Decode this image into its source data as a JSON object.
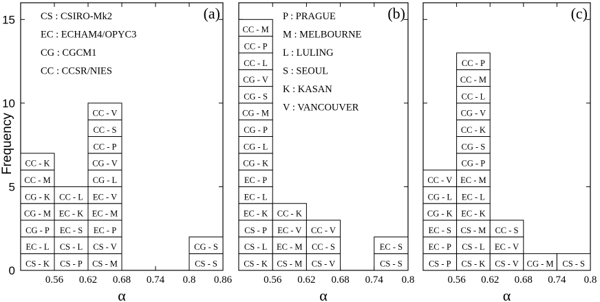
{
  "figure": {
    "ylabel": "Frequency",
    "y_ticks": [
      "0",
      "5",
      "10",
      "15"
    ]
  },
  "chart_data": [
    {
      "type": "bar",
      "panel_label": "(a)",
      "xlabel": "α",
      "x_ticks": [
        "0.56",
        "0.62",
        "0.68",
        "0.74",
        "0.8",
        "0.86"
      ],
      "xlim": [
        0.5,
        0.86
      ],
      "ylim": [
        0,
        16
      ],
      "bin_width": 0.06,
      "legend": [
        "CS : CSIRO-Mk2",
        "EC : ECHAM4/OPYC3",
        "CG : CGCM1",
        "CC : CCSR/NIES"
      ],
      "bins": [
        {
          "x0": 0.5,
          "items": [
            "CS - K",
            "EC - L",
            "CG - P",
            "CG - M",
            "CG - K",
            "CC - M",
            "CC - K"
          ]
        },
        {
          "x0": 0.56,
          "items": [
            "CS - P",
            "CS - L",
            "EC - S",
            "EC - K",
            "CC - L"
          ]
        },
        {
          "x0": 0.62,
          "items": [
            "CS - M",
            "CS - V",
            "EC - P",
            "EC - M",
            "EC - V",
            "CG - L",
            "CG - V",
            "CC - P",
            "CC - S",
            "CC - V"
          ]
        },
        {
          "x0": 0.8,
          "items": [
            "CS - S",
            "CG - S"
          ]
        }
      ]
    },
    {
      "type": "bar",
      "panel_label": "(b)",
      "xlabel": "α",
      "x_ticks": [
        "0.56",
        "0.62",
        "0.68",
        "0.74",
        "0.8"
      ],
      "xlim": [
        0.5,
        0.8
      ],
      "ylim": [
        0,
        16
      ],
      "bin_width": 0.06,
      "legend": [
        "P : PRAGUE",
        "M : MELBOURNE",
        "L : LULING",
        "S : SEOUL",
        "K : KASAN",
        "V : VANCOUVER"
      ],
      "bins": [
        {
          "x0": 0.5,
          "items": [
            "CS - K",
            "CS - L",
            "CS - P",
            "EC - K",
            "EC - L",
            "EC - P",
            "CG - K",
            "CG - L",
            "CG - P",
            "CG - M",
            "CG - S",
            "CG - V",
            "CC - L",
            "CC - P",
            "CC - M"
          ]
        },
        {
          "x0": 0.56,
          "items": [
            "CS - M",
            "EC - M",
            "EC - V",
            "CC - K"
          ]
        },
        {
          "x0": 0.62,
          "items": [
            "CS - V",
            "CC - S",
            "CC - V"
          ]
        },
        {
          "x0": 0.74,
          "items": [
            "CS - S",
            "EC - S"
          ]
        }
      ]
    },
    {
      "type": "bar",
      "panel_label": "(c)",
      "xlabel": "α",
      "x_ticks": [
        "0.56",
        "0.62",
        "0.68",
        "0.74",
        "0.8"
      ],
      "xlim": [
        0.5,
        0.8
      ],
      "ylim": [
        0,
        16
      ],
      "bin_width": 0.06,
      "legend": [],
      "bins": [
        {
          "x0": 0.5,
          "items": [
            "CS - P",
            "EC - P",
            "EC - S",
            "CG - K",
            "CG - L",
            "CC - V"
          ]
        },
        {
          "x0": 0.56,
          "items": [
            "CS - K",
            "CS - L",
            "CS - M",
            "EC - K",
            "EC - L",
            "EC - M",
            "CG - P",
            "CG - S",
            "CC - K",
            "CG - V",
            "CC - L",
            "CC - M",
            "CC - P"
          ]
        },
        {
          "x0": 0.62,
          "items": [
            "CS - V",
            "EC - V",
            "CC - S"
          ]
        },
        {
          "x0": 0.68,
          "items": [
            "CG - M"
          ]
        },
        {
          "x0": 0.74,
          "items": [
            "CS - S"
          ]
        }
      ]
    }
  ]
}
